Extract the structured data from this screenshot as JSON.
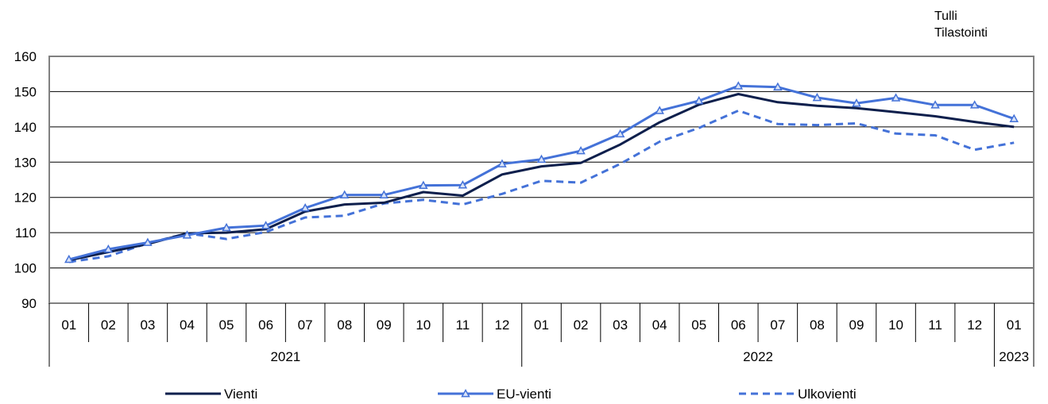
{
  "source": {
    "line1": "Tulli",
    "line2": "Tilastointi"
  },
  "chart_data": {
    "type": "line",
    "title": "",
    "xlabel": "",
    "ylabel": "",
    "ylim": [
      90,
      160
    ],
    "yticks": [
      90,
      100,
      110,
      120,
      130,
      140,
      150,
      160
    ],
    "grid": true,
    "legend_position": "bottom",
    "categories": [
      "01",
      "02",
      "03",
      "04",
      "05",
      "06",
      "07",
      "08",
      "09",
      "10",
      "11",
      "12",
      "01",
      "02",
      "03",
      "04",
      "05",
      "06",
      "07",
      "08",
      "09",
      "10",
      "11",
      "12",
      "01"
    ],
    "year_groups": [
      {
        "label": "2021",
        "count": 12
      },
      {
        "label": "2022",
        "count": 12
      },
      {
        "label": "2023",
        "count": 1
      }
    ],
    "series": [
      {
        "name": "Vienti",
        "color": "#0d1f4c",
        "style": "solid",
        "marker": "none",
        "values": [
          102.2,
          104.5,
          106.8,
          109.8,
          110.0,
          111.0,
          116.0,
          118.0,
          118.5,
          121.5,
          120.5,
          126.5,
          128.8,
          129.8,
          135.0,
          141.3,
          146.3,
          149.3,
          147.0,
          146.0,
          145.3,
          144.2,
          143.0,
          141.4,
          140.0
        ]
      },
      {
        "name": "EU-vienti",
        "color": "#4472d8",
        "style": "solid",
        "marker": "triangle",
        "values": [
          102.4,
          105.3,
          107.2,
          109.3,
          111.4,
          112.0,
          117.0,
          120.7,
          120.7,
          123.4,
          123.5,
          129.5,
          130.8,
          133.2,
          138.0,
          144.6,
          147.4,
          151.6,
          151.3,
          148.3,
          146.7,
          148.2,
          146.2,
          146.2,
          142.3
        ]
      },
      {
        "name": "Ulkovienti",
        "color": "#4472d8",
        "style": "dashed",
        "marker": "none",
        "values": [
          101.7,
          103.3,
          107.0,
          109.8,
          108.2,
          110.2,
          114.3,
          114.8,
          118.3,
          119.3,
          118.0,
          121.0,
          124.7,
          124.2,
          129.5,
          135.8,
          139.7,
          144.6,
          140.8,
          140.5,
          141.0,
          138.1,
          137.6,
          133.5,
          135.5
        ]
      }
    ]
  }
}
